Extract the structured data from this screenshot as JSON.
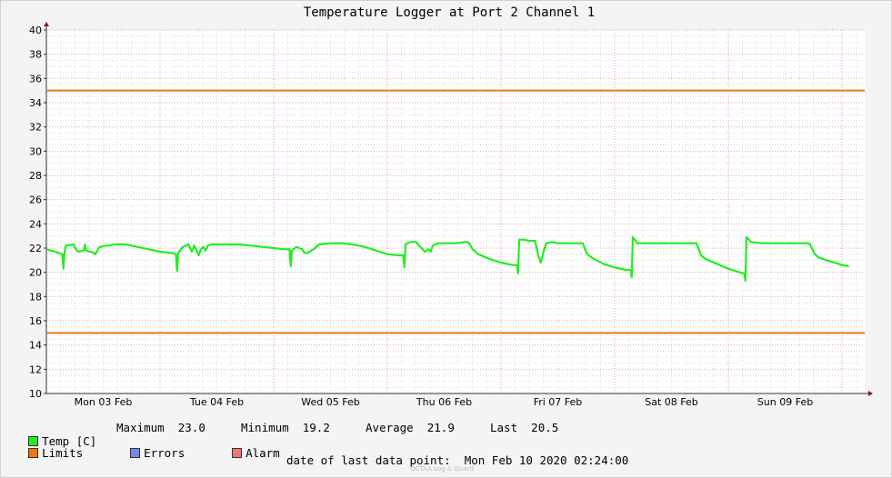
{
  "chart_data": {
    "type": "line",
    "title": "Temperature Logger at Port 2 Channel 1",
    "ylim": [
      10,
      40
    ],
    "yticks": [
      10,
      12,
      14,
      16,
      18,
      20,
      22,
      24,
      26,
      28,
      30,
      32,
      34,
      36,
      38,
      40
    ],
    "xlim": [
      0,
      7.2
    ],
    "xtick_labels": [
      {
        "label": "Mon 03 Feb",
        "pos": 0.5
      },
      {
        "label": "Tue 04 Feb",
        "pos": 1.5
      },
      {
        "label": "Wed 05 Feb",
        "pos": 2.5
      },
      {
        "label": "Thu 06 Feb",
        "pos": 3.5
      },
      {
        "label": "Fri 07 Feb",
        "pos": 4.5
      },
      {
        "label": "Sat 08 Feb",
        "pos": 5.5
      },
      {
        "label": "Sun 09 Feb",
        "pos": 6.5
      }
    ],
    "grid": true,
    "limits": {
      "upper": 35,
      "lower": 15
    },
    "series": [
      {
        "name": "Temp [C]",
        "color": "#22ee22",
        "x": [
          0.0,
          0.08,
          0.14,
          0.15,
          0.16,
          0.17,
          0.24,
          0.26,
          0.28,
          0.33,
          0.34,
          0.35,
          0.38,
          0.4,
          0.43,
          0.45,
          0.46,
          0.47,
          0.53,
          0.55,
          0.6,
          0.7,
          0.8,
          0.9,
          1.0,
          1.1,
          1.14,
          1.15,
          1.16,
          1.2,
          1.25,
          1.27,
          1.28,
          1.3,
          1.33,
          1.34,
          1.36,
          1.38,
          1.4,
          1.42,
          1.45,
          1.5,
          1.6,
          1.7,
          1.8,
          1.9,
          2.0,
          2.1,
          2.14,
          2.15,
          2.16,
          2.2,
          2.25,
          2.27,
          2.3,
          2.35,
          2.4,
          2.5,
          2.6,
          2.7,
          2.8,
          2.9,
          3.0,
          3.1,
          3.14,
          3.15,
          3.16,
          3.2,
          3.25,
          3.3,
          3.33,
          3.36,
          3.38,
          3.4,
          3.45,
          3.5,
          3.6,
          3.7,
          3.72,
          3.75,
          3.8,
          3.9,
          4.0,
          4.1,
          4.14,
          4.15,
          4.16,
          4.2,
          4.25,
          4.3,
          4.33,
          4.35,
          4.38,
          4.4,
          4.45,
          4.5,
          4.6,
          4.7,
          4.72,
          4.74,
          4.76,
          4.8,
          4.9,
          5.0,
          5.1,
          5.14,
          5.15,
          5.16,
          5.2,
          5.3,
          5.4,
          5.5,
          5.6,
          5.7,
          5.72,
          5.74,
          5.76,
          5.8,
          5.9,
          6.0,
          6.1,
          6.14,
          6.15,
          6.16,
          6.2,
          6.3,
          6.4,
          6.5,
          6.6,
          6.7,
          6.72,
          6.74,
          6.76,
          6.8,
          6.9,
          7.0,
          7.06
        ],
        "values": [
          21.9,
          21.7,
          21.5,
          20.3,
          21.6,
          22.2,
          22.3,
          21.9,
          21.7,
          21.8,
          22.3,
          21.8,
          21.7,
          21.7,
          21.5,
          21.8,
          22.0,
          22.1,
          22.2,
          22.2,
          22.3,
          22.3,
          22.1,
          21.9,
          21.7,
          21.6,
          21.5,
          20.1,
          21.6,
          22.1,
          22.3,
          21.9,
          21.7,
          22.2,
          21.6,
          21.4,
          21.9,
          22.1,
          21.8,
          22.2,
          22.3,
          22.3,
          22.3,
          22.3,
          22.2,
          22.1,
          22.0,
          21.9,
          21.9,
          20.5,
          21.8,
          22.1,
          21.9,
          21.6,
          21.6,
          21.9,
          22.3,
          22.4,
          22.4,
          22.3,
          22.1,
          21.8,
          21.5,
          21.4,
          21.4,
          20.4,
          22.3,
          22.5,
          22.5,
          22.0,
          21.7,
          21.9,
          21.7,
          22.2,
          22.4,
          22.4,
          22.4,
          22.5,
          22.4,
          21.9,
          21.5,
          21.1,
          20.8,
          20.6,
          20.6,
          19.9,
          22.7,
          22.7,
          22.6,
          22.6,
          21.3,
          20.8,
          21.9,
          22.4,
          22.5,
          22.4,
          22.4,
          22.4,
          22.4,
          21.9,
          21.5,
          21.2,
          20.7,
          20.4,
          20.2,
          20.2,
          19.6,
          22.9,
          22.4,
          22.4,
          22.4,
          22.4,
          22.4,
          22.4,
          22.4,
          21.9,
          21.4,
          21.1,
          20.7,
          20.3,
          20.0,
          19.9,
          19.3,
          22.9,
          22.5,
          22.4,
          22.4,
          22.4,
          22.4,
          22.4,
          22.3,
          21.9,
          21.5,
          21.2,
          20.9,
          20.6,
          20.5
        ]
      }
    ]
  },
  "legend": {
    "temp_label": "Temp [C]",
    "max_label": "Maximum",
    "max_value": "23.0",
    "min_label": "Minimum",
    "min_value": "19.2",
    "avg_label": "Average",
    "avg_value": "21.9",
    "last_label": "Last",
    "last_value": "20.5",
    "limits_label": "Limits",
    "errors_label": "Errors",
    "alarm_label": "Alarm"
  },
  "colors": {
    "temp": "#22ee22",
    "limits": "#ee7711",
    "errors": "#7788ee",
    "alarm": "#ee7777",
    "grid_major": "#e8a0a0",
    "grid_minor": "#dddddd"
  },
  "footer": {
    "last_point_label": "date of last data point:",
    "last_point_value": "Mon Feb 10 2020 02:24:00",
    "watermark": "OCTAA Log & Guard"
  }
}
